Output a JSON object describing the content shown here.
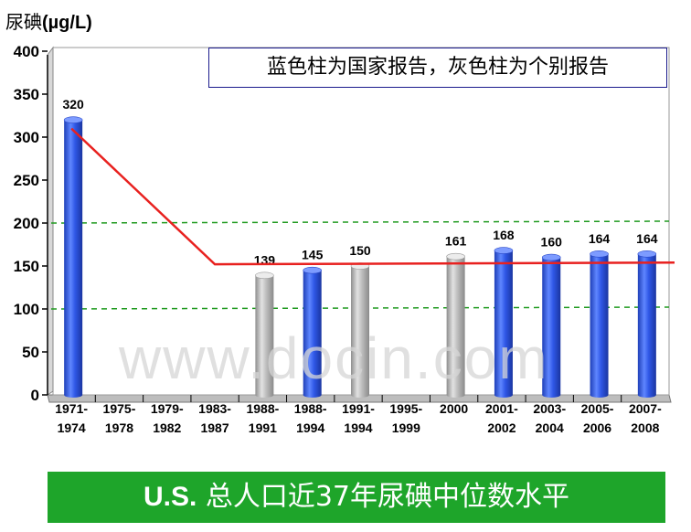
{
  "chart_data": {
    "type": "bar",
    "title": "U.S. 总人口近37年尿碘中位数水平",
    "ylabel_main": "尿碘",
    "ylabel_unit": "(µg/L)",
    "ylim": [
      0,
      400
    ],
    "yticks": [
      "0",
      "50",
      "100",
      "150",
      "200",
      "250",
      "300",
      "350",
      "400"
    ],
    "legend": "蓝色柱为国家报告，灰色柱为个别报告",
    "categories": [
      [
        "1971-",
        "1974"
      ],
      [
        "1975-",
        "1978"
      ],
      [
        "1979-",
        "1982"
      ],
      [
        "1983-",
        "1987"
      ],
      [
        "1988-",
        "1991"
      ],
      [
        "1988-",
        "1994"
      ],
      [
        "1991-",
        "1994"
      ],
      [
        "1995-",
        "1999"
      ],
      [
        "2000",
        ""
      ],
      [
        "2001-",
        "2002"
      ],
      [
        "2003-",
        "2004"
      ],
      [
        "2005-",
        "2006"
      ],
      [
        "2007-",
        "2008"
      ]
    ],
    "values": [
      320,
      null,
      null,
      null,
      139,
      145,
      150,
      null,
      161,
      168,
      160,
      164,
      164
    ],
    "value_labels": [
      "320",
      "",
      "",
      "",
      "139",
      "145",
      "150",
      "",
      "161",
      "168",
      "160",
      "164",
      "164"
    ],
    "bar_kind": [
      "national",
      null,
      null,
      null,
      "individual",
      "national",
      "individual",
      null,
      "individual",
      "national",
      "national",
      "national",
      "national"
    ],
    "reference_lines": [
      100,
      200
    ],
    "trend_line": [
      [
        0,
        310
      ],
      [
        3,
        152
      ],
      [
        12,
        154
      ]
    ],
    "grid": false,
    "colors": {
      "national": "#2f57e6",
      "individual": "#b8b8b8",
      "trend": "#e8211f",
      "reference": "#1f9a1f",
      "banner": "#1ea52a"
    }
  },
  "watermark": "www.docin.com"
}
